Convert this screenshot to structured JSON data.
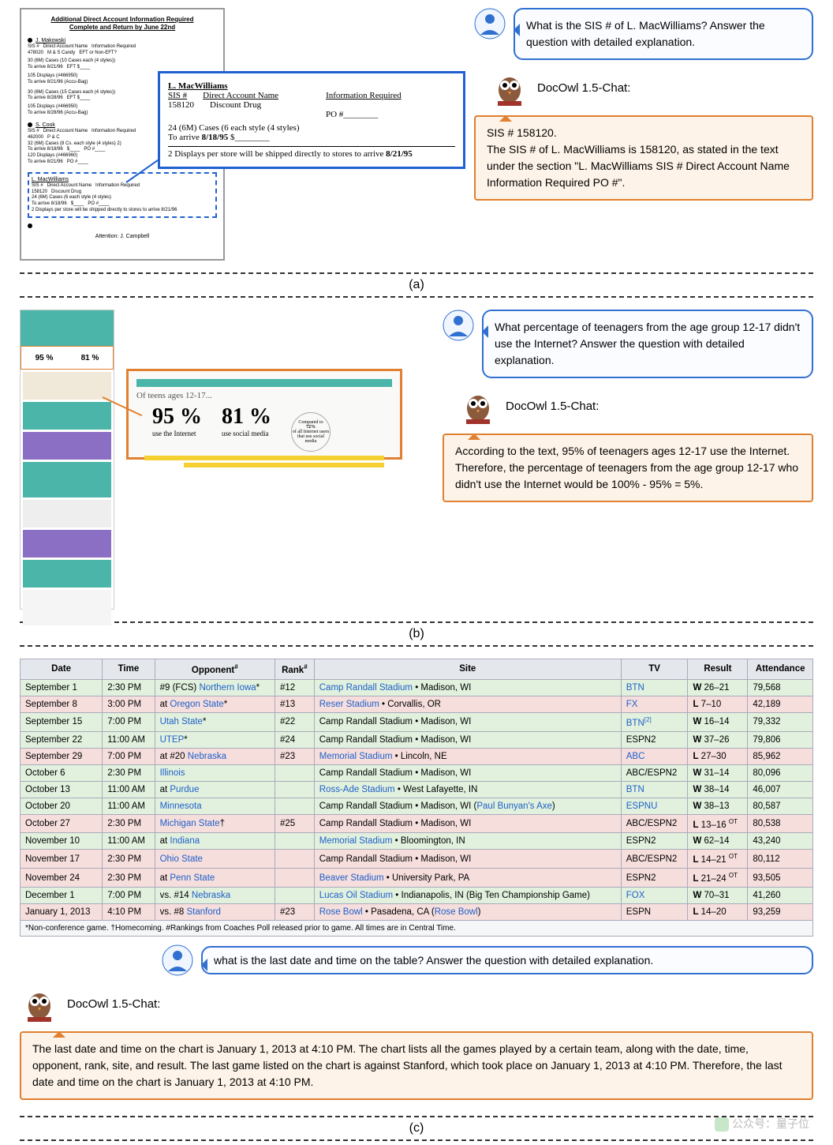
{
  "bot_name": "DocOwl 1.5-Chat:",
  "sectionA": {
    "doc": {
      "title": "Additional Direct Account Information Required",
      "subtitle": "Complete and Return by June 22nd",
      "dashed_name": "L. MacWilliams",
      "attention": "Attention: J. Campbell"
    },
    "callout": {
      "name": "L. MacWilliams",
      "h1": "SIS #",
      "h2": "Direct Account Name",
      "h3": "Information Required",
      "sis": "158120",
      "acct": "Discount Drug",
      "po": "PO #________",
      "line1": "24 (6M) Cases (6 each style (4 styles)",
      "line2_pre": "To arrive ",
      "line2_b": "8/18/95",
      "line2_post": "    $________",
      "line3_pre": "2 Displays per store will be shipped directly to stores to arrive ",
      "line3_b": "8/21/95"
    },
    "question": "What is the SIS # of L. MacWilliams? Answer the question with detailed explanation.",
    "answer": "SIS # 158120.\nThe SIS # of L. MacWilliams is 158120, as stated in the text under the section \"L. MacWilliams SIS # Direct Account Name Information Required PO #\"."
  },
  "sectionB": {
    "thumb": {
      "p1": "95 %",
      "p2": "81 %"
    },
    "callout": {
      "of_teens": "Of teens ages 12-17...",
      "p1": "95 %",
      "p1_sub": "use the Internet",
      "p2": "81 %",
      "p2_sub": "use social media",
      "circle_top": "Compared to",
      "circle_b": "72%",
      "circle_rest": "of all Internet users that use social media"
    },
    "question": "What percentage of teenagers from the age group 12-17 didn't use the Internet? Answer the question with detailed explanation.",
    "answer": "According to the text, 95% of teenagers ages 12-17 use the Internet. Therefore, the percentage of teenagers from the age group 12-17 who didn't use the Internet would be 100% - 95% = 5%."
  },
  "sectionC": {
    "headers": [
      "Date",
      "Time",
      "Opponent#",
      "Rank#",
      "Site",
      "TV",
      "Result",
      "Attendance"
    ],
    "rows": [
      {
        "cls": "win",
        "date": "September 1",
        "time": "2:30 PM",
        "opp_pre": "#9 (FCS) ",
        "opp_link": "Northern Iowa",
        "opp_post": "*",
        "rank": "#12",
        "site_link": "Camp Randall Stadium",
        "site_rest": " • Madison, WI",
        "tv": "BTN",
        "tv_link": true,
        "res": "W 26–21",
        "att": "79,568"
      },
      {
        "cls": "loss",
        "date": "September 8",
        "time": "3:00 PM",
        "opp_pre": "at ",
        "opp_link": "Oregon State",
        "opp_post": "*",
        "rank": "#13",
        "site_link": "Reser Stadium",
        "site_rest": " • Corvallis, OR",
        "tv": "FX",
        "tv_link": true,
        "res": "L 7–10",
        "att": "42,189"
      },
      {
        "cls": "win",
        "date": "September 15",
        "time": "7:00 PM",
        "opp_pre": "",
        "opp_link": "Utah State",
        "opp_post": "*",
        "rank": "#22",
        "site_link": "",
        "site_rest": "Camp Randall Stadium • Madison, WI",
        "tv": "BTN",
        "tv_sup": "[2]",
        "tv_link": true,
        "res": "W 16–14",
        "att": "79,332"
      },
      {
        "cls": "win",
        "date": "September 22",
        "time": "11:00 AM",
        "opp_pre": "",
        "opp_link": "UTEP",
        "opp_post": "*",
        "rank": "#24",
        "site_link": "",
        "site_rest": "Camp Randall Stadium • Madison, WI",
        "tv": "ESPN2",
        "res": "W 37–26",
        "att": "79,806"
      },
      {
        "cls": "loss",
        "date": "September 29",
        "time": "7:00 PM",
        "opp_pre": "at #20 ",
        "opp_link": "Nebraska",
        "opp_post": "",
        "rank": "#23",
        "site_link": "Memorial Stadium",
        "site_rest": " • Lincoln, NE",
        "tv": "ABC",
        "tv_link": true,
        "res": "L 27–30",
        "att": "85,962"
      },
      {
        "cls": "win",
        "date": "October 6",
        "time": "2:30 PM",
        "opp_pre": "",
        "opp_link": "Illinois",
        "opp_post": "",
        "rank": "",
        "site_link": "",
        "site_rest": "Camp Randall Stadium • Madison, WI",
        "tv": "ABC/ESPN2",
        "res": "W 31–14",
        "att": "80,096"
      },
      {
        "cls": "win",
        "date": "October 13",
        "time": "11:00 AM",
        "opp_pre": "at ",
        "opp_link": "Purdue",
        "opp_post": "",
        "rank": "",
        "site_link": "Ross-Ade Stadium",
        "site_rest": " • West Lafayette, IN",
        "tv": "BTN",
        "tv_link": true,
        "res": "W 38–14",
        "att": "46,007"
      },
      {
        "cls": "win",
        "date": "October 20",
        "time": "11:00 AM",
        "opp_pre": "",
        "opp_link": "Minnesota",
        "opp_post": "",
        "rank": "",
        "site_link": "",
        "site_rest": "Camp Randall Stadium • Madison, WI (",
        "site_link2": "Paul Bunyan's Axe",
        "site_rest2": ")",
        "tv": "ESPNU",
        "tv_link": true,
        "res": "W 38–13",
        "att": "80,587"
      },
      {
        "cls": "loss",
        "date": "October 27",
        "time": "2:30 PM",
        "opp_pre": "",
        "opp_link": "Michigan State",
        "opp_post": "†",
        "rank": "#25",
        "site_link": "",
        "site_rest": "Camp Randall Stadium • Madison, WI",
        "tv": "ABC/ESPN2",
        "res": "L 13–16 ",
        "res_sup": "OT",
        "att": "80,538"
      },
      {
        "cls": "win",
        "date": "November 10",
        "time": "11:00 AM",
        "opp_pre": "at ",
        "opp_link": "Indiana",
        "opp_post": "",
        "rank": "",
        "site_link": "Memorial Stadium",
        "site_rest": " • Bloomington, IN",
        "tv": "ESPN2",
        "res": "W 62–14",
        "att": "43,240"
      },
      {
        "cls": "loss",
        "date": "November 17",
        "time": "2:30 PM",
        "opp_pre": "",
        "opp_link": "Ohio State",
        "opp_post": "",
        "rank": "",
        "site_link": "",
        "site_rest": "Camp Randall Stadium • Madison, WI",
        "tv": "ABC/ESPN2",
        "res": "L 14–21 ",
        "res_sup": "OT",
        "att": "80,112"
      },
      {
        "cls": "loss",
        "date": "November 24",
        "time": "2:30 PM",
        "opp_pre": "at ",
        "opp_link": "Penn State",
        "opp_post": "",
        "rank": "",
        "site_link": "Beaver Stadium",
        "site_rest": " • University Park, PA",
        "tv": "ESPN2",
        "res": "L 21–24 ",
        "res_sup": "OT",
        "att": "93,505"
      },
      {
        "cls": "win",
        "date": "December 1",
        "time": "7:00 PM",
        "opp_pre": "vs. #14 ",
        "opp_link": "Nebraska",
        "opp_post": "",
        "rank": "",
        "site_link": "Lucas Oil Stadium",
        "site_rest": " • Indianapolis, IN (Big Ten Championship Game)",
        "tv": "FOX",
        "tv_link": true,
        "res": "W 70–31",
        "att": "41,260"
      },
      {
        "cls": "loss",
        "date": "January 1, 2013",
        "time": "4:10 PM",
        "opp_pre": "vs. #8 ",
        "opp_link": "Stanford",
        "opp_post": "",
        "rank": "#23",
        "site_link": "Rose Bowl",
        "site_rest": " • Pasadena, CA (",
        "site_link2": "Rose Bowl",
        "site_rest2": ")",
        "tv": "ESPN",
        "res": "L 14–20",
        "att": "93,259"
      }
    ],
    "footnote_pre": "*Non-conference game. †Homecoming. #Rankings from ",
    "footnote_link": "Coaches Poll",
    "footnote_mid": " released prior to game. All times are in ",
    "footnote_link2": "Central Time",
    "footnote_end": ".",
    "question": "what is the last date and time on the table? Answer the question with detailed explanation.",
    "answer": "The last date and time on the chart is January 1, 2013 at 4:10 PM. The chart lists all the games played by a certain team, along with the date, time, opponent, rank, site, and result. The last game listed on the chart is against Stanford, which took place on January 1, 2013 at 4:10 PM. Therefore, the last date and time on the chart is January 1, 2013 at 4:10 PM."
  },
  "labels": {
    "a": "(a)",
    "b": "(b)",
    "c": "(c)"
  },
  "watermark": "公众号：量子位"
}
